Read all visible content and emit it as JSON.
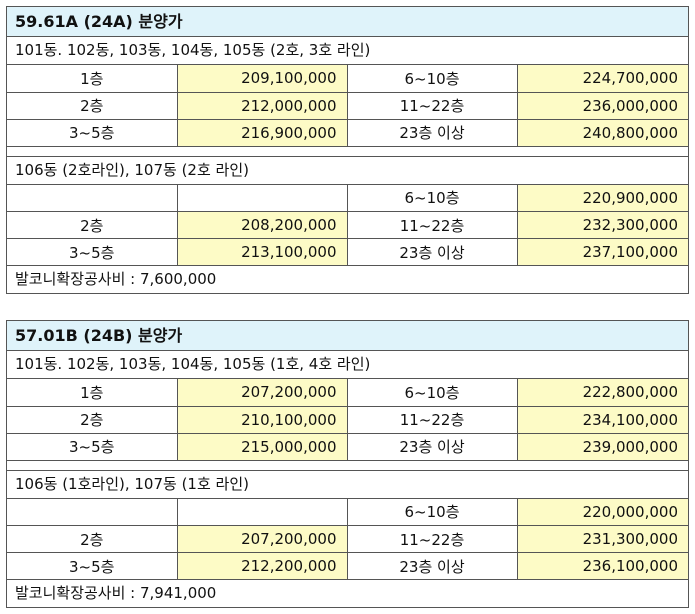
{
  "sections": [
    {
      "title": "59.61A   (24A) 분양가",
      "groups": [
        {
          "heading": "101동. 102동, 103동, 104동, 105동 (2호, 3호 라인)",
          "rows": [
            {
              "floor_a": "1층",
              "price_a": "209,100,000",
              "floor_b": "6~10층",
              "price_b": "224,700,000"
            },
            {
              "floor_a": "2층",
              "price_a": "212,000,000",
              "floor_b": "11~22층",
              "price_b": "236,000,000"
            },
            {
              "floor_a": "3~5층",
              "price_a": "216,900,000",
              "floor_b": "23층 이상",
              "price_b": "240,800,000"
            }
          ]
        },
        {
          "heading": "106동 (2호라인), 107동 (2호 라인)",
          "rows": [
            {
              "floor_a": "",
              "price_a": "",
              "floor_b": "6~10층",
              "price_b": "220,900,000"
            },
            {
              "floor_a": "2층",
              "price_a": "208,200,000",
              "floor_b": "11~22층",
              "price_b": "232,300,000"
            },
            {
              "floor_a": "3~5층",
              "price_a": "213,100,000",
              "floor_b": "23층 이상",
              "price_b": "237,100,000"
            }
          ]
        }
      ],
      "footer": "발코니확장공사비 : 7,600,000"
    },
    {
      "title": "57.01B   (24B) 분양가",
      "groups": [
        {
          "heading": "101동. 102동, 103동, 104동, 105동 (1호, 4호 라인)",
          "rows": [
            {
              "floor_a": "1층",
              "price_a": "207,200,000",
              "floor_b": "6~10층",
              "price_b": "222,800,000"
            },
            {
              "floor_a": "2층",
              "price_a": "210,100,000",
              "floor_b": "11~22층",
              "price_b": "234,100,000"
            },
            {
              "floor_a": "3~5층",
              "price_a": "215,000,000",
              "floor_b": "23층 이상",
              "price_b": "239,000,000"
            }
          ]
        },
        {
          "heading": "106동 (1호라인), 107동 (1호 라인)",
          "rows": [
            {
              "floor_a": "",
              "price_a": "",
              "floor_b": "6~10층",
              "price_b": "220,000,000"
            },
            {
              "floor_a": "2층",
              "price_a": "207,200,000",
              "floor_b": "11~22층",
              "price_b": "231,300,000"
            },
            {
              "floor_a": "3~5층",
              "price_a": "212,200,000",
              "floor_b": "23층 이상",
              "price_b": "236,100,000"
            }
          ]
        }
      ],
      "footer": "발코니확장공사비 : 7,941,000"
    }
  ]
}
